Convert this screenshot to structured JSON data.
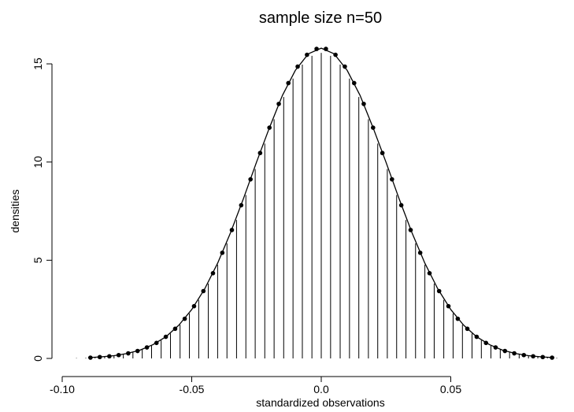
{
  "chart_data": {
    "type": "scatter",
    "title": "sample size n=50",
    "x_label": "standardized observations",
    "y_label": "densities",
    "xlim": [
      -0.1,
      0.095
    ],
    "ylim": [
      0,
      16
    ],
    "xticks": [
      {
        "value": -0.1,
        "label": "-0.10"
      },
      -0.05,
      {
        "value": 0,
        "label": "0.0"
      },
      0.05
    ],
    "yticks": [
      0,
      5,
      10,
      15
    ],
    "series": [
      {
        "style": "needles",
        "color": "#000000",
        "x": [
          -0.0945,
          -0.0909,
          -0.0873,
          -0.0836,
          -0.08,
          -0.0764,
          -0.0727,
          -0.0691,
          -0.0655,
          -0.0618,
          -0.0582,
          -0.0545,
          -0.0509,
          -0.0473,
          -0.0436,
          -0.04,
          -0.0364,
          -0.0327,
          -0.0291,
          -0.0255,
          -0.0218,
          -0.0182,
          -0.0145,
          -0.0109,
          -0.0073,
          -0.0036,
          0,
          0.0036,
          0.0073,
          0.0109,
          0.0145,
          0.0182,
          0.0218,
          0.0255,
          0.0291,
          0.0327,
          0.0364,
          0.04,
          0.0436,
          0.0473,
          0.0509,
          0.0545,
          0.0582,
          0.0618,
          0.0655,
          0.0691,
          0.0727,
          0.0764,
          0.08,
          0.0836,
          0.0873,
          0.0909
        ],
        "values": [
          0.02,
          0.03,
          0.06,
          0.09,
          0.14,
          0.21,
          0.31,
          0.46,
          0.65,
          0.92,
          1.27,
          1.72,
          2.29,
          2.98,
          3.81,
          4.77,
          5.86,
          7.05,
          8.32,
          9.64,
          10.94,
          12.18,
          13.31,
          14.25,
          14.96,
          15.41,
          15.56,
          15.41,
          14.96,
          14.25,
          13.31,
          12.18,
          10.94,
          9.64,
          8.32,
          7.05,
          5.86,
          4.77,
          3.81,
          2.98,
          2.29,
          1.72,
          1.27,
          0.92,
          0.65,
          0.46,
          0.31,
          0.21,
          0.14,
          0.09,
          0.06,
          0.03
        ]
      },
      {
        "style": "points",
        "color": "#000000",
        "x": [
          -0.0891,
          -0.0855,
          -0.0818,
          -0.0782,
          -0.0745,
          -0.0709,
          -0.0673,
          -0.0636,
          -0.06,
          -0.0564,
          -0.0527,
          -0.0491,
          -0.0455,
          -0.0418,
          -0.0382,
          -0.0345,
          -0.0309,
          -0.0273,
          -0.0236,
          -0.02,
          -0.0164,
          -0.0127,
          -0.0091,
          -0.0055,
          -0.0018,
          0.0018,
          0.0055,
          0.0091,
          0.0127,
          0.0164,
          0.02,
          0.0236,
          0.0273,
          0.0309,
          0.0345,
          0.0382,
          0.0418,
          0.0455,
          0.0491,
          0.0527,
          0.0564,
          0.06,
          0.0636,
          0.0673,
          0.0709,
          0.0745,
          0.0782,
          0.0818,
          0.0855,
          0.0891
        ],
        "values": [
          0.04,
          0.07,
          0.11,
          0.17,
          0.26,
          0.38,
          0.56,
          0.79,
          1.1,
          1.51,
          2.02,
          2.66,
          3.43,
          4.34,
          5.38,
          6.54,
          7.8,
          9.12,
          10.46,
          11.75,
          12.96,
          14.02,
          14.86,
          15.46,
          15.76,
          15.76,
          15.46,
          14.86,
          14.02,
          12.96,
          11.75,
          10.46,
          9.12,
          7.8,
          6.54,
          5.38,
          4.34,
          3.43,
          2.66,
          2.02,
          1.51,
          1.1,
          0.79,
          0.56,
          0.38,
          0.26,
          0.17,
          0.11,
          0.07,
          0.04
        ]
      },
      {
        "style": "line",
        "color": "#000000",
        "x": [
          -0.09,
          -0.085,
          -0.08,
          -0.075,
          -0.07,
          -0.065,
          -0.06,
          -0.055,
          -0.05,
          -0.045,
          -0.04,
          -0.035,
          -0.03,
          -0.025,
          -0.02,
          -0.015,
          -0.01,
          -0.005,
          0,
          0.005,
          0.01,
          0.015,
          0.02,
          0.025,
          0.03,
          0.035,
          0.04,
          0.045,
          0.05,
          0.055,
          0.06,
          0.065,
          0.07,
          0.075,
          0.08,
          0.085,
          0.09
        ],
        "values": [
          0.04,
          0.08,
          0.14,
          0.25,
          0.42,
          0.7,
          1.1,
          1.69,
          2.49,
          3.54,
          4.85,
          6.41,
          8.15,
          9.99,
          11.75,
          13.39,
          14.67,
          15.51,
          15.8,
          15.51,
          14.67,
          13.39,
          11.75,
          9.99,
          8.15,
          6.41,
          4.85,
          3.54,
          2.49,
          1.69,
          1.1,
          0.7,
          0.42,
          0.25,
          0.14,
          0.08,
          0.04
        ]
      }
    ]
  }
}
